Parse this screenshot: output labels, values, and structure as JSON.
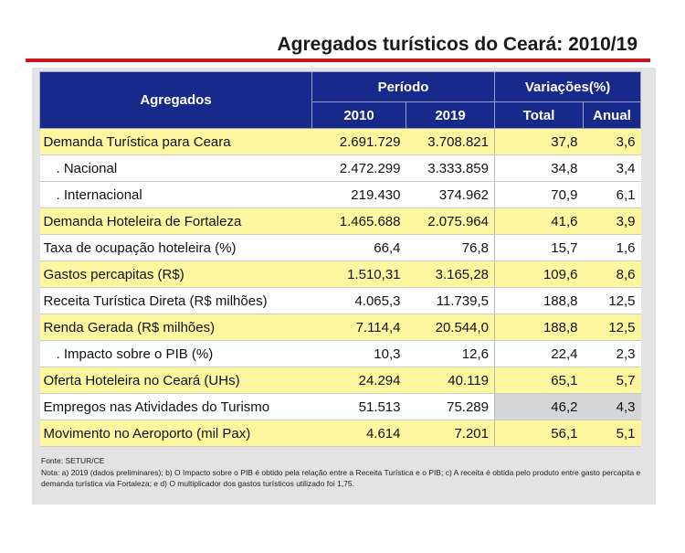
{
  "title": "Agregados turísticos do Ceará: 2010/19",
  "colors": {
    "header": "#172a8c",
    "highlight": "#fdf7a0",
    "accent_line": "#c8161c"
  },
  "table": {
    "headers": {
      "agregados": "Agregados",
      "periodo": "Período",
      "variacoes": "Variações(%)",
      "y2010": "2010",
      "y2019": "2019",
      "total": "Total",
      "anual": "Anual"
    },
    "rows": [
      {
        "label": "Demanda Turística para Ceara",
        "v2010": "2.691.729",
        "v2019": "3.708.821",
        "total": "37,8",
        "anual": "3,6"
      },
      {
        "label": ". Nacional",
        "v2010": "2.472.299",
        "v2019": "3.333.859",
        "total": "34,8",
        "anual": "3,4"
      },
      {
        "label": ". Internacional",
        "v2010": "219.430",
        "v2019": "374.962",
        "total": "70,9",
        "anual": "6,1"
      },
      {
        "label": "Demanda Hoteleira de Fortaleza",
        "v2010": "1.465.688",
        "v2019": "2.075.964",
        "total": "41,6",
        "anual": "3,9"
      },
      {
        "label": "Taxa de ocupação hoteleira (%)",
        "v2010": "66,4",
        "v2019": "76,8",
        "total": "15,7",
        "anual": "1,6"
      },
      {
        "label": "Gastos percapitas (R$)",
        "v2010": "1.510,31",
        "v2019": "3.165,28",
        "total": "109,6",
        "anual": "8,6"
      },
      {
        "label": "Receita Turística Direta (R$ milhões)",
        "v2010": "4.065,3",
        "v2019": "11.739,5",
        "total": "188,8",
        "anual": "12,5"
      },
      {
        "label": "Renda Gerada (R$ milhões)",
        "v2010": "7.114,4",
        "v2019": "20.544,0",
        "total": "188,8",
        "anual": "12,5"
      },
      {
        "label": ". Impacto sobre o PIB (%)",
        "v2010": "10,3",
        "v2019": "12,6",
        "total": "22,4",
        "anual": "2,3"
      },
      {
        "label": "Oferta Hoteleira no Ceará (UHs)",
        "v2010": "24.294",
        "v2019": "40.119",
        "total": "65,1",
        "anual": "5,7"
      },
      {
        "label": "Empregos nas Atividades do Turismo",
        "v2010": "51.513",
        "v2019": "75.289",
        "total": "46,2",
        "anual": "4,3"
      },
      {
        "label": "Movimento no Aeroporto (mil Pax)",
        "v2010": "4.614",
        "v2019": "7.201",
        "total": "56,1",
        "anual": "5,1"
      }
    ]
  },
  "footer": {
    "source": "Fonte: SETUR/CE",
    "note": "Nota: a) 2019 (dados preliminares); b) O Impacto sobre o PIB é obtido pela relação entre a Receita Turística e o PIB; c) A receita é obtida pelo produto entre gasto percapita e demanda turística via Fortaleza; e d) O multiplicador dos gastos turísticos utilizado foi 1,75."
  }
}
